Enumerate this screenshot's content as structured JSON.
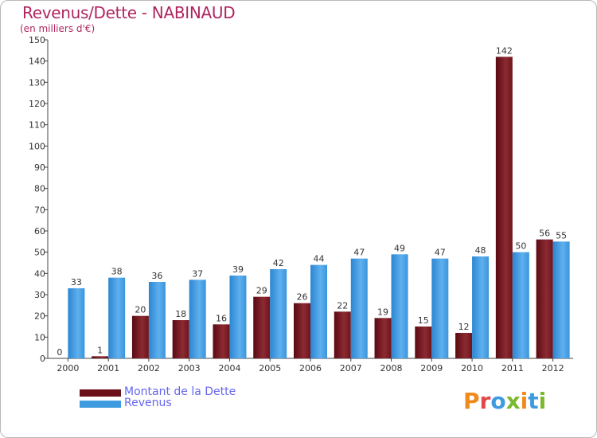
{
  "chart_data": {
    "type": "bar",
    "title": "Revenus/Dette - NABINAUD",
    "subtitle": "(en milliers d'€)",
    "xlabel": "",
    "ylabel": "",
    "ylim": [
      0,
      150
    ],
    "yticks": [
      0,
      10,
      20,
      30,
      40,
      50,
      60,
      70,
      80,
      90,
      100,
      110,
      120,
      130,
      140,
      150
    ],
    "categories": [
      "2000",
      "2001",
      "2002",
      "2003",
      "2004",
      "2005",
      "2006",
      "2007",
      "2008",
      "2009",
      "2010",
      "2011",
      "2012"
    ],
    "series": [
      {
        "name": "Montant de la Dette",
        "color": "#7a1a22",
        "values": [
          0,
          1,
          20,
          18,
          16,
          29,
          26,
          22,
          19,
          15,
          12,
          142,
          56
        ]
      },
      {
        "name": "Revenus",
        "color": "#3f9be0",
        "values": [
          33,
          38,
          36,
          37,
          39,
          42,
          44,
          47,
          49,
          47,
          48,
          50,
          55
        ]
      }
    ],
    "legend_position": "bottom-left",
    "grid": false
  },
  "logo": {
    "text": "Proxiti",
    "colors": [
      "#f08a1c",
      "#e0464a",
      "#3f9be0",
      "#7ab82e",
      "#f08a1c",
      "#3f9be0",
      "#7ab82e"
    ]
  }
}
